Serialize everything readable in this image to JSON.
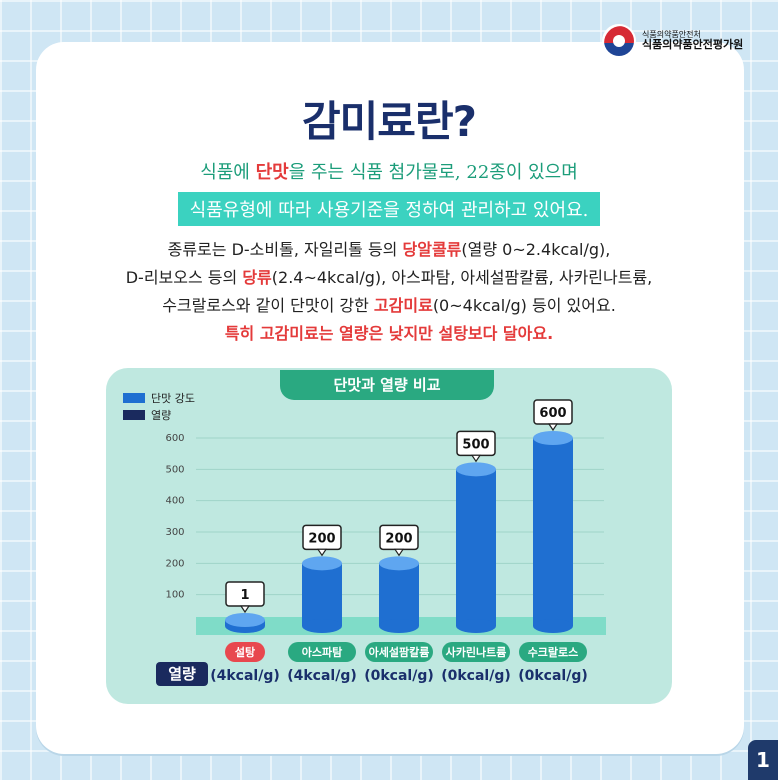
{
  "agency": {
    "top_line": "식품의약품안전처",
    "name": "식품의약품안전평가원"
  },
  "title": "감미료란?",
  "intro_line1": {
    "pre": "식품에 ",
    "highlight": "단맛",
    "post": "을 주는 식품 첨가물로, 22종이 있으며"
  },
  "intro_line2": "식품유형에 따라 사용기준을 정하여 관리하고 있어요.",
  "body": {
    "l1_pre": "종류로는 D-소비톨, 자일리톨 등의 ",
    "l1_hl": "당알콜류",
    "l1_post": "(열량 0~2.4kcal/g),",
    "l2_pre": "D-리보오스 등의 ",
    "l2_hl": "당류",
    "l2_post": "(2.4~4kcal/g), 아스파탐, 아세설팜칼륨, 사카린나트륨,",
    "l3_pre": "수크랄로스와 같이 단맛이 강한 ",
    "l3_hl": "고감미료",
    "l3_post": "(0~4kcal/g) 등이 있어요.",
    "l4": "특히 고감미료는 열량은 낮지만 설탕보다 달아요."
  },
  "page_number": "1",
  "chart_data": {
    "type": "bar",
    "title": "단맛과 열량 비교",
    "categories": [
      "설탕",
      "아스파탐",
      "아세설팜칼륨",
      "사카린나트륨",
      "수크랄로스"
    ],
    "series": [
      {
        "name": "단맛 강도",
        "values": [
          1,
          200,
          200,
          500,
          600
        ]
      }
    ],
    "value_labels": [
      "1",
      "200",
      "200",
      "500",
      "600"
    ],
    "legend": [
      "단맛 강도",
      "열량"
    ],
    "legend_placement": "top-left",
    "calories_label": "열량",
    "calories": [
      "(4kcal/g)",
      "(4kcal/g)",
      "(0kcal/g)",
      "(0kcal/g)",
      "(0kcal/g)"
    ],
    "y_ticks": [
      100,
      200,
      300,
      400,
      500,
      600
    ],
    "ylim": [
      0,
      600
    ],
    "grid": true,
    "colors": {
      "bar": "#1f6fd1",
      "bar_top": "#5fa6f0",
      "sugar_pill": "#e8484e",
      "pill": "#2aa981",
      "calorie_legend": "#1a2a5e"
    }
  }
}
